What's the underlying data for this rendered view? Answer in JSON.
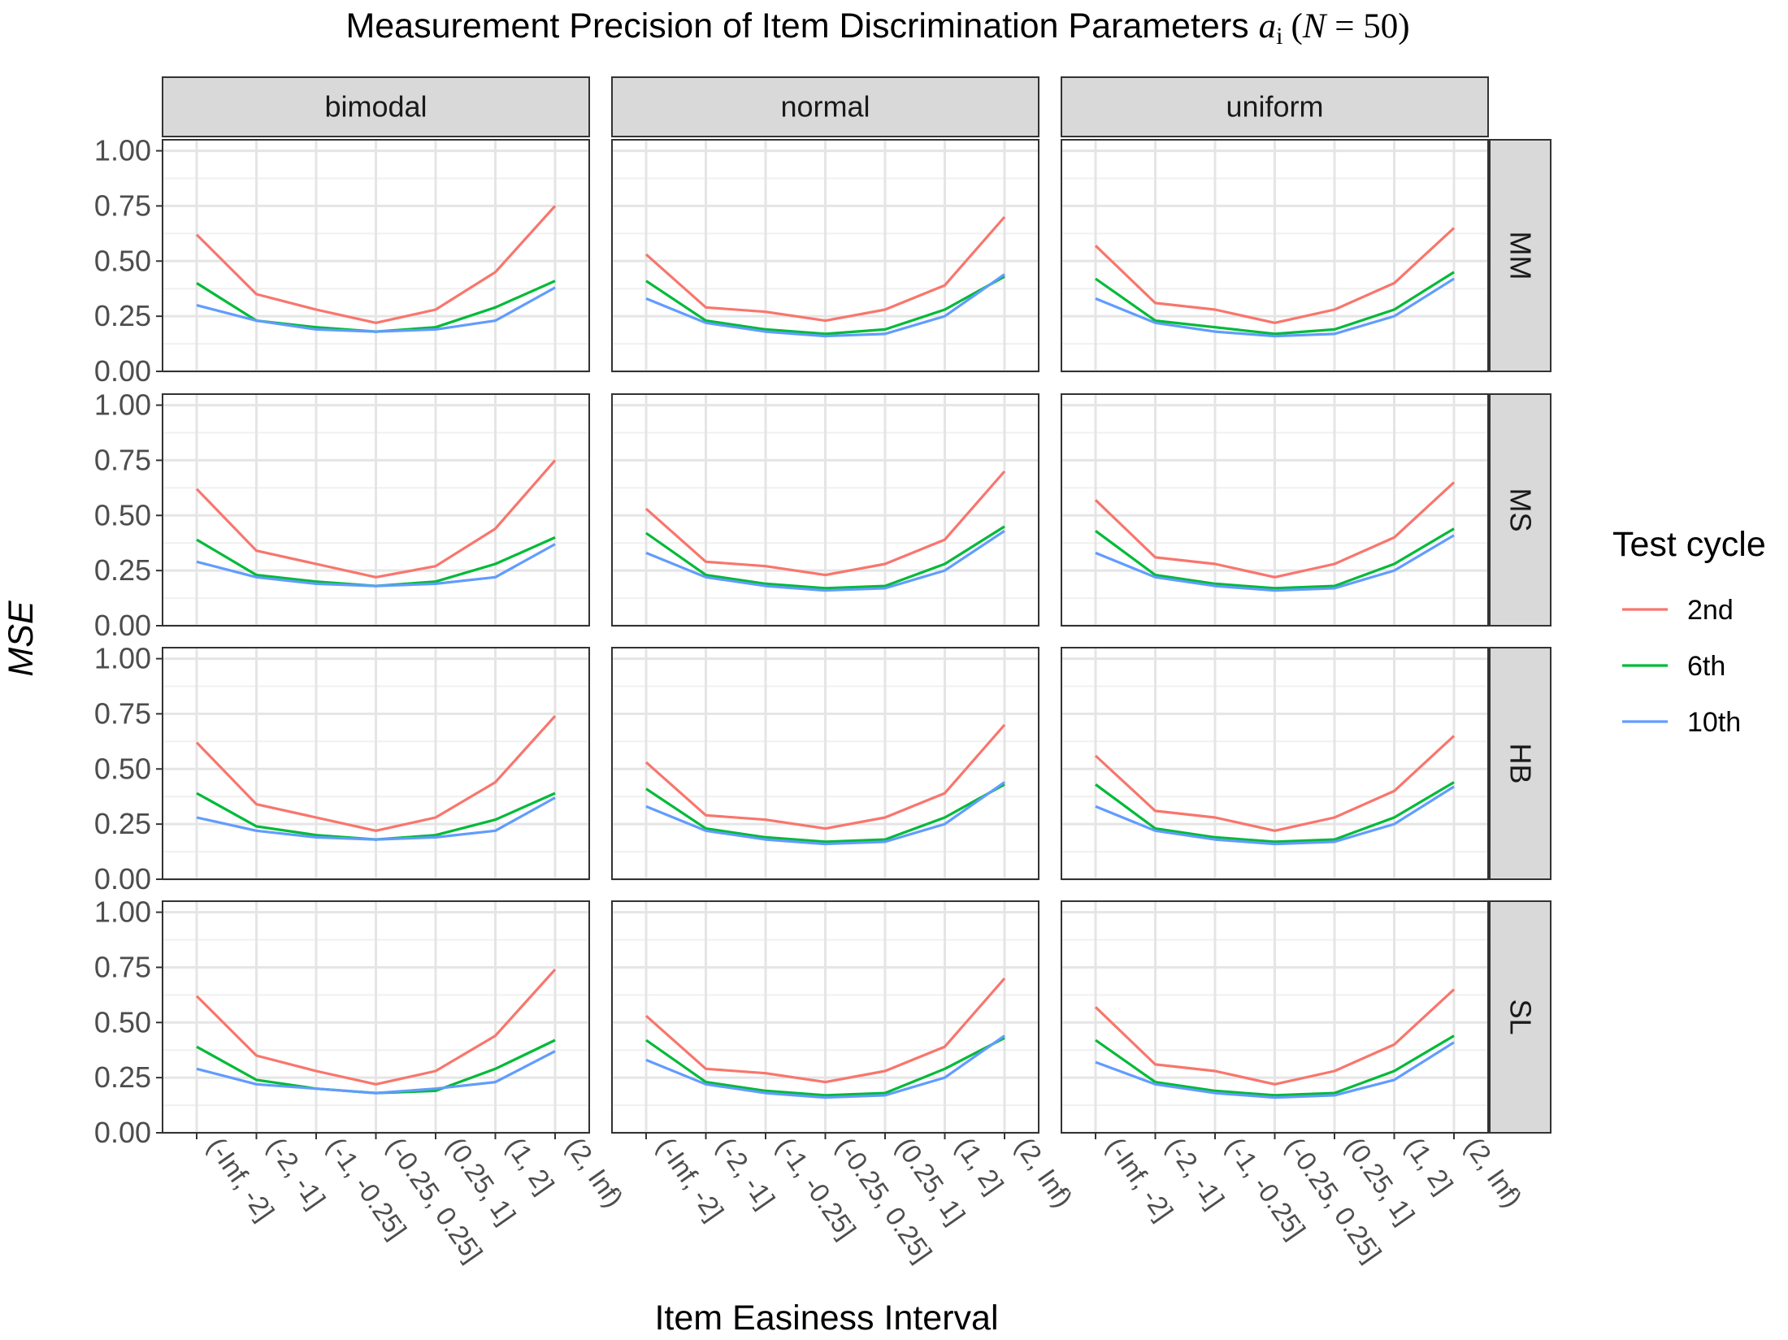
{
  "chart_data": {
    "type": "line",
    "title": {
      "prefix": "Measurement Precision of Item Discrimination Parameters ",
      "symbol": "a",
      "subscript": "i",
      "open": "(",
      "n_symbol": "N",
      "equals": " = ",
      "n_value": "50",
      "close": ")"
    },
    "xlabel": "Item Easiness Interval",
    "ylabel": "MSE",
    "ylim": [
      0,
      1.05
    ],
    "yticks": [
      0.0,
      0.25,
      0.5,
      0.75,
      1.0
    ],
    "ytick_labels": [
      "0.00",
      "0.25",
      "0.50",
      "0.75",
      "1.00"
    ],
    "categories": [
      "(-Inf, -2]",
      "(-2, -1]",
      "(-1, -0.25]",
      "(-0.25, 0.25]",
      "(0.25, 1]",
      "(1, 2]",
      "(2, Inf)"
    ],
    "col_facets": [
      "bimodal",
      "normal",
      "uniform"
    ],
    "row_facets": [
      "MM",
      "MS",
      "HB",
      "SL"
    ],
    "legend": {
      "title": "Test cycle",
      "entries": [
        "2nd",
        "6th",
        "10th"
      ],
      "colors": [
        "#F8766D",
        "#00BA38",
        "#619CFF"
      ]
    },
    "panels": [
      {
        "row": "MM",
        "col": "bimodal",
        "series": [
          {
            "name": "2nd",
            "values": [
              0.62,
              0.35,
              0.28,
              0.22,
              0.28,
              0.45,
              0.75
            ]
          },
          {
            "name": "6th",
            "values": [
              0.4,
              0.23,
              0.2,
              0.18,
              0.2,
              0.29,
              0.41
            ]
          },
          {
            "name": "10th",
            "values": [
              0.3,
              0.23,
              0.19,
              0.18,
              0.19,
              0.23,
              0.38
            ]
          }
        ]
      },
      {
        "row": "MM",
        "col": "normal",
        "series": [
          {
            "name": "2nd",
            "values": [
              0.53,
              0.29,
              0.27,
              0.23,
              0.28,
              0.39,
              0.7
            ]
          },
          {
            "name": "6th",
            "values": [
              0.41,
              0.23,
              0.19,
              0.17,
              0.19,
              0.28,
              0.43
            ]
          },
          {
            "name": "10th",
            "values": [
              0.33,
              0.22,
              0.18,
              0.16,
              0.17,
              0.25,
              0.44
            ]
          }
        ]
      },
      {
        "row": "MM",
        "col": "uniform",
        "series": [
          {
            "name": "2nd",
            "values": [
              0.57,
              0.31,
              0.28,
              0.22,
              0.28,
              0.4,
              0.65
            ]
          },
          {
            "name": "6th",
            "values": [
              0.42,
              0.23,
              0.2,
              0.17,
              0.19,
              0.28,
              0.45
            ]
          },
          {
            "name": "10th",
            "values": [
              0.33,
              0.22,
              0.18,
              0.16,
              0.17,
              0.25,
              0.42
            ]
          }
        ]
      },
      {
        "row": "MS",
        "col": "bimodal",
        "series": [
          {
            "name": "2nd",
            "values": [
              0.62,
              0.34,
              0.28,
              0.22,
              0.27,
              0.44,
              0.75
            ]
          },
          {
            "name": "6th",
            "values": [
              0.39,
              0.23,
              0.2,
              0.18,
              0.2,
              0.28,
              0.4
            ]
          },
          {
            "name": "10th",
            "values": [
              0.29,
              0.22,
              0.19,
              0.18,
              0.19,
              0.22,
              0.37
            ]
          }
        ]
      },
      {
        "row": "MS",
        "col": "normal",
        "series": [
          {
            "name": "2nd",
            "values": [
              0.53,
              0.29,
              0.27,
              0.23,
              0.28,
              0.39,
              0.7
            ]
          },
          {
            "name": "6th",
            "values": [
              0.42,
              0.23,
              0.19,
              0.17,
              0.18,
              0.28,
              0.45
            ]
          },
          {
            "name": "10th",
            "values": [
              0.33,
              0.22,
              0.18,
              0.16,
              0.17,
              0.25,
              0.43
            ]
          }
        ]
      },
      {
        "row": "MS",
        "col": "uniform",
        "series": [
          {
            "name": "2nd",
            "values": [
              0.57,
              0.31,
              0.28,
              0.22,
              0.28,
              0.4,
              0.65
            ]
          },
          {
            "name": "6th",
            "values": [
              0.43,
              0.23,
              0.19,
              0.17,
              0.18,
              0.28,
              0.44
            ]
          },
          {
            "name": "10th",
            "values": [
              0.33,
              0.22,
              0.18,
              0.16,
              0.17,
              0.25,
              0.41
            ]
          }
        ]
      },
      {
        "row": "HB",
        "col": "bimodal",
        "series": [
          {
            "name": "2nd",
            "values": [
              0.62,
              0.34,
              0.28,
              0.22,
              0.28,
              0.44,
              0.74
            ]
          },
          {
            "name": "6th",
            "values": [
              0.39,
              0.24,
              0.2,
              0.18,
              0.2,
              0.27,
              0.39
            ]
          },
          {
            "name": "10th",
            "values": [
              0.28,
              0.22,
              0.19,
              0.18,
              0.19,
              0.22,
              0.37
            ]
          }
        ]
      },
      {
        "row": "HB",
        "col": "normal",
        "series": [
          {
            "name": "2nd",
            "values": [
              0.53,
              0.29,
              0.27,
              0.23,
              0.28,
              0.39,
              0.7
            ]
          },
          {
            "name": "6th",
            "values": [
              0.41,
              0.23,
              0.19,
              0.17,
              0.18,
              0.28,
              0.43
            ]
          },
          {
            "name": "10th",
            "values": [
              0.33,
              0.22,
              0.18,
              0.16,
              0.17,
              0.25,
              0.44
            ]
          }
        ]
      },
      {
        "row": "HB",
        "col": "uniform",
        "series": [
          {
            "name": "2nd",
            "values": [
              0.56,
              0.31,
              0.28,
              0.22,
              0.28,
              0.4,
              0.65
            ]
          },
          {
            "name": "6th",
            "values": [
              0.43,
              0.23,
              0.19,
              0.17,
              0.18,
              0.28,
              0.44
            ]
          },
          {
            "name": "10th",
            "values": [
              0.33,
              0.22,
              0.18,
              0.16,
              0.17,
              0.25,
              0.42
            ]
          }
        ]
      },
      {
        "row": "SL",
        "col": "bimodal",
        "series": [
          {
            "name": "2nd",
            "values": [
              0.62,
              0.35,
              0.28,
              0.22,
              0.28,
              0.44,
              0.74
            ]
          },
          {
            "name": "6th",
            "values": [
              0.39,
              0.24,
              0.2,
              0.18,
              0.19,
              0.29,
              0.42
            ]
          },
          {
            "name": "10th",
            "values": [
              0.29,
              0.22,
              0.2,
              0.18,
              0.2,
              0.23,
              0.37
            ]
          }
        ]
      },
      {
        "row": "SL",
        "col": "normal",
        "series": [
          {
            "name": "2nd",
            "values": [
              0.53,
              0.29,
              0.27,
              0.23,
              0.28,
              0.39,
              0.7
            ]
          },
          {
            "name": "6th",
            "values": [
              0.42,
              0.23,
              0.19,
              0.17,
              0.18,
              0.29,
              0.43
            ]
          },
          {
            "name": "10th",
            "values": [
              0.33,
              0.22,
              0.18,
              0.16,
              0.17,
              0.25,
              0.44
            ]
          }
        ]
      },
      {
        "row": "SL",
        "col": "uniform",
        "series": [
          {
            "name": "2nd",
            "values": [
              0.57,
              0.31,
              0.28,
              0.22,
              0.28,
              0.4,
              0.65
            ]
          },
          {
            "name": "6th",
            "values": [
              0.42,
              0.23,
              0.19,
              0.17,
              0.18,
              0.28,
              0.44
            ]
          },
          {
            "name": "10th",
            "values": [
              0.32,
              0.22,
              0.18,
              0.16,
              0.17,
              0.24,
              0.41
            ]
          }
        ]
      }
    ]
  }
}
